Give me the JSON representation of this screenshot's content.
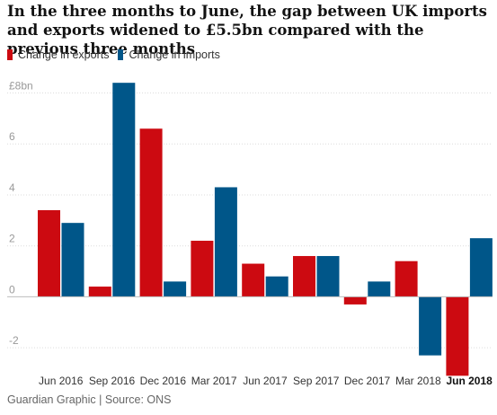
{
  "header": {
    "title": "In the three months to June, the gap between UK imports and exports widened to £5.5bn compared with the previous three months"
  },
  "legend": {
    "exports_label": "Change in exports",
    "imports_label": "Change in imports"
  },
  "colors": {
    "exports": "#cc0a11",
    "imports": "#005689",
    "gridline": "#dcdcdc",
    "zero_line": "#bdbdbd"
  },
  "footer": {
    "source": "Guardian Graphic | Source: ONS"
  },
  "chart_data": {
    "type": "bar",
    "categories": [
      "Jun 2016",
      "Sep 2016",
      "Dec 2016",
      "Mar 2017",
      "Jun 2017",
      "Sep 2017",
      "Dec 2017",
      "Mar 2018",
      "Jun 2018"
    ],
    "highlight_category": "Jun 2018",
    "series": [
      {
        "name": "Change in exports",
        "values": [
          3.4,
          0.4,
          6.6,
          2.2,
          1.3,
          1.6,
          -0.3,
          1.4,
          -3.1
        ]
      },
      {
        "name": "Change in imports",
        "values": [
          2.9,
          8.4,
          0.6,
          4.3,
          0.8,
          1.6,
          0.6,
          -2.3,
          2.3
        ]
      }
    ],
    "y_ticks": [
      {
        "value": 8,
        "label": "£8bn"
      },
      {
        "value": 6,
        "label": "6"
      },
      {
        "value": 4,
        "label": "4"
      },
      {
        "value": 2,
        "label": "2"
      },
      {
        "value": 0,
        "label": "0"
      },
      {
        "value": -2,
        "label": "-2"
      }
    ],
    "ylim": [
      -3.3,
      8.9
    ],
    "grid": true,
    "legend_position": "top-left",
    "xlabel": "",
    "ylabel": ""
  }
}
